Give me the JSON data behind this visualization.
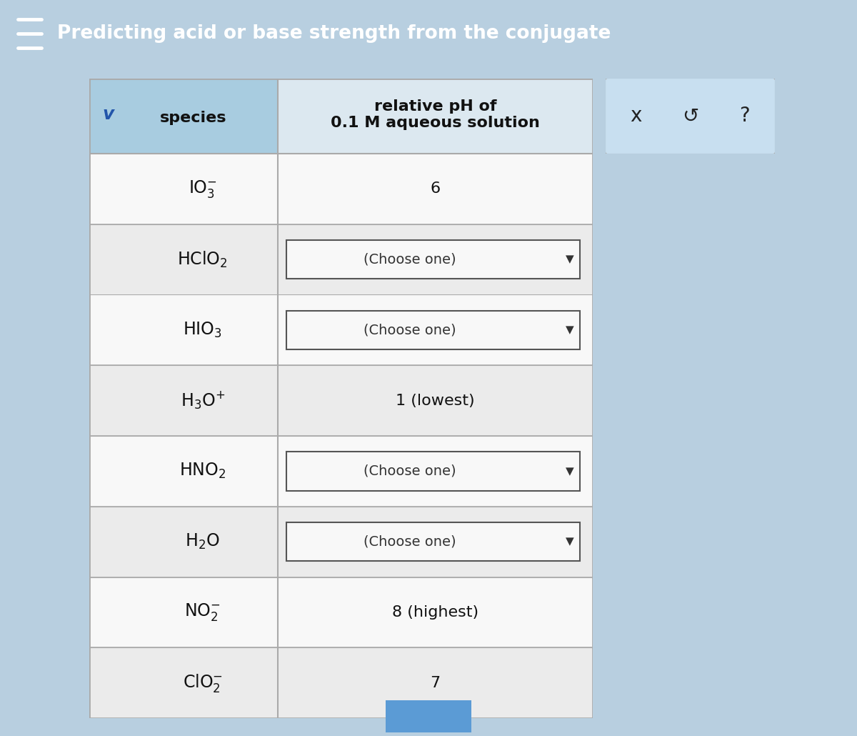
{
  "title": "Predicting acid or base strength from the conjugate",
  "title_bg": "#3a7fc1",
  "title_color": "#ffffff",
  "header_bg": "#c8dff0",
  "header_color": "#000000",
  "col1_header": "species",
  "col2_header": "relative pH of\n0.1 M aqueous solution",
  "table_bg_white": "#f5f5f5",
  "table_bg_gray": "#e4e4e4",
  "table_border": "#aaaaaa",
  "rows": [
    {
      "species_latex": "IO$_3^{-}$",
      "ph": "6",
      "type": "text"
    },
    {
      "species_latex": "HClO$_2$",
      "ph": "(Choose one)",
      "type": "dropdown"
    },
    {
      "species_latex": "HIO$_3$",
      "ph": "(Choose one)",
      "type": "dropdown"
    },
    {
      "species_latex": "H$_3$O$^{+}$",
      "ph": "1 (lowest)",
      "type": "text"
    },
    {
      "species_latex": "HNO$_2$",
      "ph": "(Choose one)",
      "type": "dropdown"
    },
    {
      "species_latex": "H$_2$O",
      "ph": "(Choose one)",
      "type": "dropdown"
    },
    {
      "species_latex": "NO$_2^{-}$",
      "ph": "8 (highest)",
      "type": "text"
    },
    {
      "species_latex": "ClO$_2^{-}$",
      "ph": "7",
      "type": "text"
    }
  ],
  "right_panel_bg": "#c8dff0",
  "right_panel_border": "#aaaaaa",
  "right_symbols": [
    "x",
    "↺",
    "?"
  ],
  "overall_bg": "#b8cfe0",
  "hamburger_color": "#ffffff",
  "bottom_button_color": "#5b9bd5",
  "header_left_bg": "#a8cce0",
  "checkmark_color": "#2255aa"
}
